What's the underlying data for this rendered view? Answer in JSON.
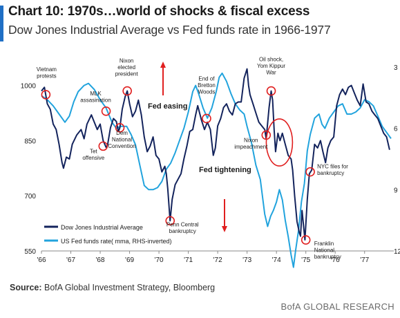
{
  "header": {
    "title": "Chart 10: 1970s…world of shocks & fiscal excess",
    "subtitle": "Dow Jones Industrial Average vs Fed funds rate in 1966-1977",
    "accent_color": "#1f6fc5"
  },
  "footer": {
    "source_label": "Source:",
    "source_text": " BofA Global Investment Strategy, Bloomberg",
    "brand": "BofA GLOBAL RESEARCH"
  },
  "chart_data": {
    "type": "line",
    "title": "Chart 10: 1970s…world of shocks & fiscal excess",
    "subtitle": "Dow Jones Industrial Average vs Fed funds rate in 1966-1977",
    "x_range": [
      1966.0,
      1977.9
    ],
    "x_ticks": [
      "'66",
      "'67",
      "'68",
      "'69",
      "'70",
      "'71",
      "'72",
      "'73",
      "'74",
      "'75",
      "'76",
      "'77"
    ],
    "y_left": {
      "range": [
        550,
        1050
      ],
      "ticks": [
        550,
        700,
        850,
        1000
      ]
    },
    "y_right": {
      "range": [
        3,
        12
      ],
      "inverted": true,
      "ticks": [
        "3",
        "6",
        "9",
        "12"
      ]
    },
    "grid": false,
    "legend_position": "bottom-left",
    "series": [
      {
        "name": "Dow Jones Industrial Average",
        "axis": "left",
        "color": "#13235c",
        "points": [
          [
            1966.0,
            985
          ],
          [
            1966.1,
            995
          ],
          [
            1966.2,
            950
          ],
          [
            1966.3,
            935
          ],
          [
            1966.4,
            895
          ],
          [
            1966.5,
            880
          ],
          [
            1966.6,
            840
          ],
          [
            1966.7,
            790
          ],
          [
            1966.75,
            775
          ],
          [
            1966.85,
            805
          ],
          [
            1966.95,
            800
          ],
          [
            1967.05,
            840
          ],
          [
            1967.2,
            865
          ],
          [
            1967.35,
            880
          ],
          [
            1967.45,
            855
          ],
          [
            1967.55,
            895
          ],
          [
            1967.7,
            920
          ],
          [
            1967.8,
            900
          ],
          [
            1967.9,
            880
          ],
          [
            1968.0,
            895
          ],
          [
            1968.1,
            850
          ],
          [
            1968.2,
            832
          ],
          [
            1968.25,
            838
          ],
          [
            1968.35,
            885
          ],
          [
            1968.45,
            910
          ],
          [
            1968.55,
            902
          ],
          [
            1968.62,
            875
          ],
          [
            1968.67,
            885
          ],
          [
            1968.75,
            935
          ],
          [
            1968.85,
            970
          ],
          [
            1968.92,
            985
          ],
          [
            1969.0,
            950
          ],
          [
            1969.1,
            915
          ],
          [
            1969.2,
            930
          ],
          [
            1969.3,
            960
          ],
          [
            1969.4,
            920
          ],
          [
            1969.5,
            860
          ],
          [
            1969.6,
            820
          ],
          [
            1969.7,
            835
          ],
          [
            1969.8,
            860
          ],
          [
            1969.9,
            810
          ],
          [
            1970.0,
            800
          ],
          [
            1970.1,
            765
          ],
          [
            1970.2,
            780
          ],
          [
            1970.25,
            760
          ],
          [
            1970.3,
            720
          ],
          [
            1970.38,
            632
          ],
          [
            1970.45,
            690
          ],
          [
            1970.55,
            730
          ],
          [
            1970.65,
            745
          ],
          [
            1970.75,
            760
          ],
          [
            1970.85,
            800
          ],
          [
            1970.95,
            835
          ],
          [
            1971.05,
            875
          ],
          [
            1971.15,
            880
          ],
          [
            1971.25,
            920
          ],
          [
            1971.32,
            945
          ],
          [
            1971.45,
            905
          ],
          [
            1971.55,
            880
          ],
          [
            1971.65,
            900
          ],
          [
            1971.75,
            880
          ],
          [
            1971.85,
            810
          ],
          [
            1971.92,
            830
          ],
          [
            1972.0,
            890
          ],
          [
            1972.1,
            910
          ],
          [
            1972.2,
            940
          ],
          [
            1972.3,
            950
          ],
          [
            1972.4,
            930
          ],
          [
            1972.5,
            920
          ],
          [
            1972.6,
            950
          ],
          [
            1972.7,
            955
          ],
          [
            1972.8,
            955
          ],
          [
            1972.9,
            1020
          ],
          [
            1973.0,
            1045
          ],
          [
            1973.05,
            1000
          ],
          [
            1973.1,
            975
          ],
          [
            1973.2,
            950
          ],
          [
            1973.3,
            925
          ],
          [
            1973.4,
            900
          ],
          [
            1973.5,
            890
          ],
          [
            1973.6,
            880
          ],
          [
            1973.65,
            855
          ],
          [
            1973.75,
            940
          ],
          [
            1973.82,
            985
          ],
          [
            1973.87,
            960
          ],
          [
            1973.92,
            880
          ],
          [
            1973.97,
            820
          ],
          [
            1974.05,
            870
          ],
          [
            1974.12,
            850
          ],
          [
            1974.2,
            870
          ],
          [
            1974.3,
            840
          ],
          [
            1974.4,
            810
          ],
          [
            1974.5,
            800
          ],
          [
            1974.55,
            770
          ],
          [
            1974.62,
            700
          ],
          [
            1974.7,
            630
          ],
          [
            1974.78,
            600
          ],
          [
            1974.82,
            590
          ],
          [
            1974.87,
            660
          ],
          [
            1974.92,
            620
          ],
          [
            1974.97,
            580
          ],
          [
            1975.05,
            690
          ],
          [
            1975.12,
            760
          ],
          [
            1975.2,
            770
          ],
          [
            1975.3,
            840
          ],
          [
            1975.4,
            830
          ],
          [
            1975.5,
            850
          ],
          [
            1975.58,
            820
          ],
          [
            1975.67,
            790
          ],
          [
            1975.75,
            830
          ],
          [
            1975.85,
            850
          ],
          [
            1975.95,
            860
          ],
          [
            1976.05,
            945
          ],
          [
            1976.15,
            975
          ],
          [
            1976.25,
            990
          ],
          [
            1976.35,
            975
          ],
          [
            1976.45,
            995
          ],
          [
            1976.55,
            1000
          ],
          [
            1976.65,
            980
          ],
          [
            1976.75,
            960
          ],
          [
            1976.85,
            945
          ],
          [
            1976.95,
            1004
          ],
          [
            1977.05,
            955
          ],
          [
            1977.15,
            950
          ],
          [
            1977.25,
            930
          ],
          [
            1977.35,
            920
          ],
          [
            1977.45,
            910
          ],
          [
            1977.55,
            890
          ],
          [
            1977.65,
            870
          ],
          [
            1977.75,
            860
          ],
          [
            1977.85,
            825
          ]
        ]
      },
      {
        "name": "US Fed funds rate( mma, RHS-inverted)",
        "axis": "right",
        "color": "#21a3dd",
        "points": [
          [
            1966.0,
            4.4
          ],
          [
            1966.2,
            4.6
          ],
          [
            1966.4,
            4.9
          ],
          [
            1966.6,
            5.3
          ],
          [
            1966.8,
            5.7
          ],
          [
            1966.95,
            5.4
          ],
          [
            1967.1,
            4.7
          ],
          [
            1967.25,
            4.2
          ],
          [
            1967.45,
            3.9
          ],
          [
            1967.6,
            3.8
          ],
          [
            1967.8,
            4.1
          ],
          [
            1968.0,
            4.6
          ],
          [
            1968.2,
            5.0
          ],
          [
            1968.4,
            5.7
          ],
          [
            1968.55,
            6.0
          ],
          [
            1968.7,
            5.9
          ],
          [
            1968.9,
            5.9
          ],
          [
            1969.05,
            6.3
          ],
          [
            1969.2,
            6.8
          ],
          [
            1969.35,
            7.8
          ],
          [
            1969.5,
            8.8
          ],
          [
            1969.65,
            9.0
          ],
          [
            1969.8,
            9.0
          ],
          [
            1969.95,
            8.9
          ],
          [
            1970.1,
            8.6
          ],
          [
            1970.25,
            8.0
          ],
          [
            1970.4,
            7.7
          ],
          [
            1970.55,
            7.2
          ],
          [
            1970.7,
            6.6
          ],
          [
            1970.85,
            6.0
          ],
          [
            1971.0,
            5.2
          ],
          [
            1971.15,
            4.2
          ],
          [
            1971.25,
            3.9
          ],
          [
            1971.35,
            4.3
          ],
          [
            1971.5,
            5.0
          ],
          [
            1971.65,
            5.5
          ],
          [
            1971.8,
            5.0
          ],
          [
            1971.95,
            4.2
          ],
          [
            1972.05,
            3.5
          ],
          [
            1972.15,
            3.3
          ],
          [
            1972.3,
            3.7
          ],
          [
            1972.45,
            4.3
          ],
          [
            1972.6,
            4.8
          ],
          [
            1972.75,
            5.1
          ],
          [
            1972.9,
            5.3
          ],
          [
            1973.0,
            5.9
          ],
          [
            1973.15,
            6.7
          ],
          [
            1973.3,
            7.8
          ],
          [
            1973.45,
            8.5
          ],
          [
            1973.6,
            10.2
          ],
          [
            1973.7,
            10.8
          ],
          [
            1973.8,
            10.3
          ],
          [
            1973.9,
            10.0
          ],
          [
            1974.0,
            9.6
          ],
          [
            1974.1,
            9.0
          ],
          [
            1974.2,
            9.5
          ],
          [
            1974.3,
            10.5
          ],
          [
            1974.4,
            11.3
          ],
          [
            1974.5,
            12.2
          ],
          [
            1974.58,
            12.8
          ],
          [
            1974.65,
            12.0
          ],
          [
            1974.75,
            11.0
          ],
          [
            1974.85,
            9.6
          ],
          [
            1974.95,
            8.7
          ],
          [
            1975.05,
            7.1
          ],
          [
            1975.15,
            6.3
          ],
          [
            1975.3,
            5.5
          ],
          [
            1975.45,
            5.3
          ],
          [
            1975.55,
            5.8
          ],
          [
            1975.65,
            6.0
          ],
          [
            1975.8,
            5.5
          ],
          [
            1975.95,
            5.2
          ],
          [
            1976.1,
            4.9
          ],
          [
            1976.25,
            4.8
          ],
          [
            1976.4,
            5.3
          ],
          [
            1976.55,
            5.3
          ],
          [
            1976.7,
            5.2
          ],
          [
            1976.85,
            5.0
          ],
          [
            1977.0,
            4.6
          ],
          [
            1977.15,
            4.7
          ],
          [
            1977.3,
            4.9
          ],
          [
            1977.45,
            5.4
          ],
          [
            1977.6,
            5.9
          ],
          [
            1977.75,
            6.2
          ],
          [
            1977.9,
            6.5
          ]
        ]
      }
    ],
    "annotations": [
      {
        "text": [
          "Vietnam",
          "protests"
        ],
        "x": 1966.15,
        "y": 975
      },
      {
        "text": [
          "MLK",
          "assasination"
        ],
        "x": 1968.2,
        "y": 930
      },
      {
        "text": [
          "Nixon",
          "elected",
          "president"
        ],
        "x": 1968.92,
        "y": 985
      },
      {
        "text": [
          "Dem",
          "National",
          "Convention"
        ],
        "x": 1968.67,
        "y": 885
      },
      {
        "text": [
          "Tet",
          "offensive"
        ],
        "x": 1968.1,
        "y": 835
      },
      {
        "text": [
          "Penn Central",
          "bankruptcy"
        ],
        "x": 1970.38,
        "y": 632
      },
      {
        "text": [
          "End of",
          "Bretton",
          "Woods"
        ],
        "x": 1971.62,
        "y": 910
      },
      {
        "text": [
          "Oil shock,",
          "Yom Kippur",
          "War"
        ],
        "x": 1973.82,
        "y": 985
      },
      {
        "text": [
          "Nixon",
          "impeachment"
        ],
        "x": 1973.65,
        "y": 865
      },
      {
        "text": [
          "NYC files for",
          "bankruptcy"
        ],
        "x": 1975.15,
        "y": 765
      },
      {
        "text": [
          "Franklin",
          "National",
          "bankruptcy"
        ],
        "x": 1975.0,
        "y": 580
      }
    ],
    "callouts": [
      {
        "text": "Fed easing",
        "arrow": "up"
      },
      {
        "text": "Fed tightening",
        "arrow": "down"
      }
    ],
    "highlight_ellipse": {
      "x_center": 1974.1,
      "y_center": 845
    }
  }
}
